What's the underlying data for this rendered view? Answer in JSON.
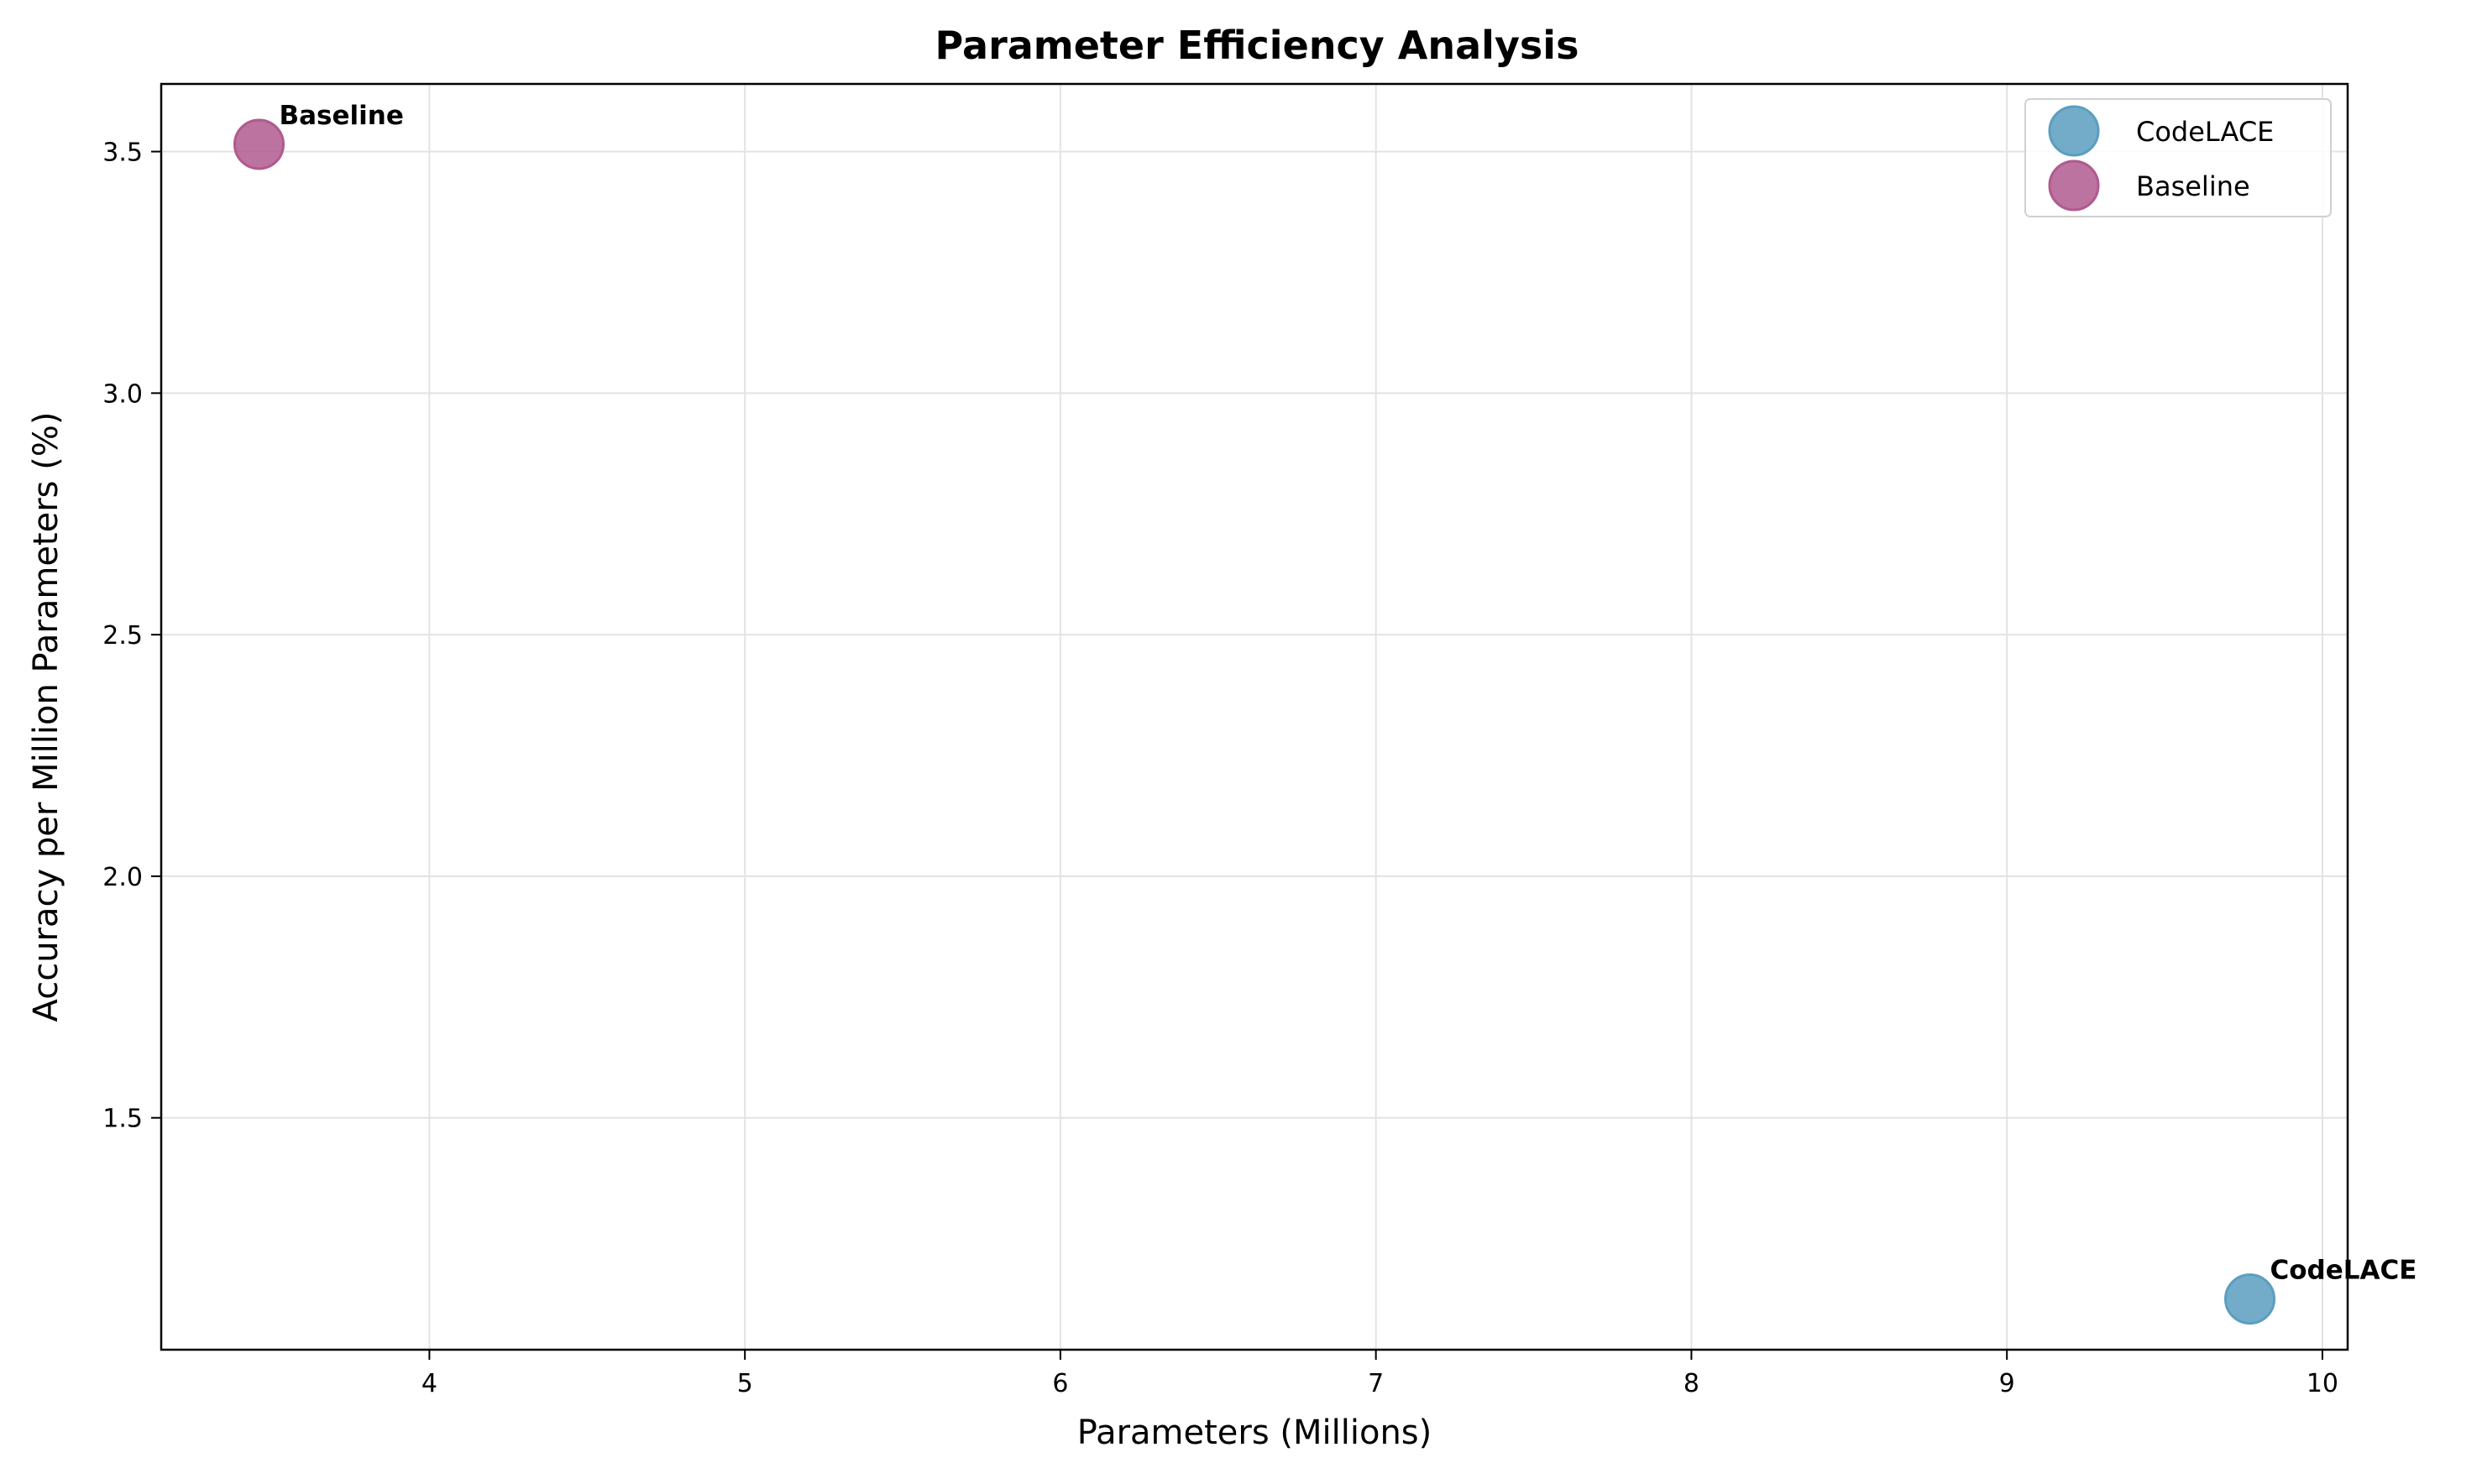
{
  "chart_data": {
    "type": "scatter",
    "title": "Parameter Efficiency Analysis",
    "xlabel": "Parameters (Millions)",
    "ylabel": "Accuracy per Million Parameters (%)",
    "xlim": [
      3.15,
      10.08
    ],
    "ylim": [
      1.02,
      3.64
    ],
    "xticks": [
      4,
      5,
      6,
      7,
      8,
      9,
      10
    ],
    "yticks": [
      1.5,
      2.0,
      2.5,
      3.0,
      3.5
    ],
    "xtick_labels": [
      "4",
      "5",
      "6",
      "7",
      "8",
      "9",
      "10"
    ],
    "ytick_labels": [
      "1.5",
      "2.0",
      "2.5",
      "3.0",
      "3.5"
    ],
    "grid": true,
    "legend_position": "top-right",
    "series": [
      {
        "name": "CodeLACE",
        "color": "#5a9ec0",
        "x": [
          9.77
        ],
        "y": [
          1.125
        ],
        "labels": [
          "CodeLACE"
        ]
      },
      {
        "name": "Baseline",
        "color": "#b05a8e",
        "x": [
          3.46
        ],
        "y": [
          3.515
        ],
        "labels": [
          "Baseline"
        ]
      }
    ]
  }
}
